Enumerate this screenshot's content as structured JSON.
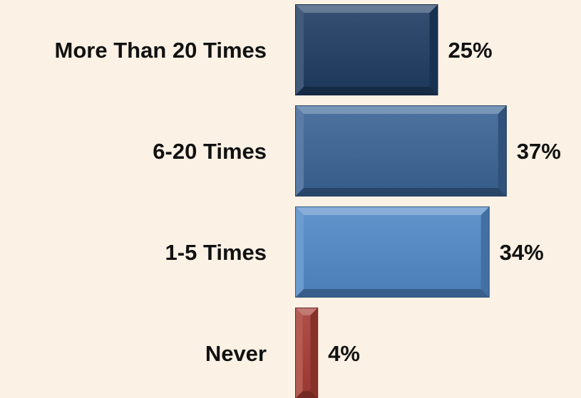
{
  "chart_data": {
    "type": "bar",
    "orientation": "horizontal",
    "categories": [
      "More Than 20 Times",
      "6-20 Times",
      "1-5 Times",
      "Never"
    ],
    "values": [
      25,
      37,
      34,
      4
    ],
    "value_labels": [
      "25%",
      "37%",
      "34%",
      "4%"
    ],
    "colors": [
      "#1e3c62",
      "#3a6395",
      "#5088c6",
      "#a63c34"
    ],
    "xlim": [
      0,
      37
    ],
    "grid": false,
    "legend": "none"
  }
}
